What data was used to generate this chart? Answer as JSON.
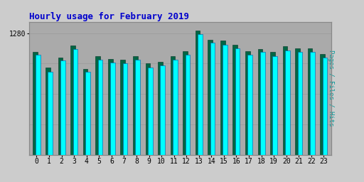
{
  "title": "Hourly usage for February 2019",
  "title_color": "#0000cc",
  "title_fontsize": 9,
  "hours": [
    0,
    1,
    2,
    3,
    4,
    5,
    6,
    7,
    8,
    9,
    10,
    11,
    12,
    13,
    14,
    15,
    16,
    17,
    18,
    19,
    20,
    21,
    22,
    23
  ],
  "pages_values": [
    1080,
    920,
    1020,
    1150,
    900,
    1040,
    1010,
    1000,
    1040,
    960,
    980,
    1040,
    1090,
    1310,
    1210,
    1200,
    1160,
    1090,
    1110,
    1080,
    1140,
    1120,
    1120,
    1060
  ],
  "hits_values": [
    1050,
    870,
    990,
    1110,
    870,
    1000,
    970,
    960,
    1000,
    920,
    940,
    1000,
    1050,
    1270,
    1180,
    1160,
    1120,
    1050,
    1080,
    1040,
    1100,
    1080,
    1080,
    1020
  ],
  "bar_width": 0.38,
  "cyan_color": "#00ffff",
  "green_color": "#006644",
  "bg_color": "#cccccc",
  "plot_bg_color": "#aaaaaa",
  "ylabel_right": "Pages / Files / Hits",
  "ylim": [
    0,
    1400
  ],
  "yticks": [
    1280
  ],
  "font_family": "monospace"
}
